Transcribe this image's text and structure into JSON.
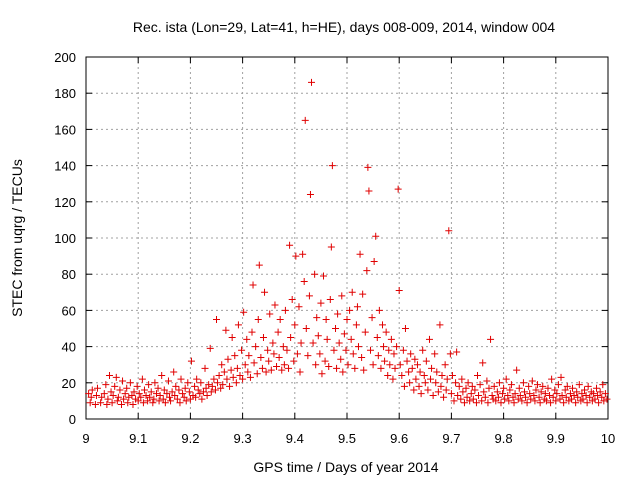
{
  "chart_data": {
    "type": "scatter",
    "title": "Rec. ista (Lon=29, Lat=41, h=HE), days 008-009, 2014, window 004",
    "xlabel": "GPS time / Days of year 2014",
    "ylabel": "STEC from uqrg / TECUs",
    "xlim": [
      9,
      10
    ],
    "ylim": [
      0,
      200
    ],
    "xticks": [
      "9",
      "9.1",
      "9.2",
      "9.3",
      "9.4",
      "9.5",
      "9.6",
      "9.7",
      "9.8",
      "9.9",
      "10"
    ],
    "yticks": [
      "0",
      "20",
      "40",
      "60",
      "80",
      "100",
      "120",
      "140",
      "160",
      "180",
      "200"
    ],
    "grid": true,
    "marker": "plus",
    "color": "#e00000",
    "points": [
      [
        9.005,
        14
      ],
      [
        9.008,
        9
      ],
      [
        9.01,
        12
      ],
      [
        9.012,
        16
      ],
      [
        9.018,
        8
      ],
      [
        9.02,
        13
      ],
      [
        9.022,
        17
      ],
      [
        9.028,
        9
      ],
      [
        9.03,
        12
      ],
      [
        9.035,
        14
      ],
      [
        9.038,
        19
      ],
      [
        9.04,
        8
      ],
      [
        9.042,
        11
      ],
      [
        9.045,
        24
      ],
      [
        9.048,
        15
      ],
      [
        9.05,
        9
      ],
      [
        9.052,
        13
      ],
      [
        9.055,
        18
      ],
      [
        9.058,
        23
      ],
      [
        9.06,
        10
      ],
      [
        9.062,
        12
      ],
      [
        9.065,
        16
      ],
      [
        9.068,
        8
      ],
      [
        9.07,
        21
      ],
      [
        9.072,
        11
      ],
      [
        9.075,
        14
      ],
      [
        9.078,
        17
      ],
      [
        9.08,
        9
      ],
      [
        9.082,
        12
      ],
      [
        9.085,
        20
      ],
      [
        9.088,
        13
      ],
      [
        9.09,
        8
      ],
      [
        9.092,
        15
      ],
      [
        9.095,
        11
      ],
      [
        9.098,
        18
      ],
      [
        9.1,
        10
      ],
      [
        9.102,
        14
      ],
      [
        9.105,
        12
      ],
      [
        9.108,
        22
      ],
      [
        9.11,
        9
      ],
      [
        9.112,
        16
      ],
      [
        9.115,
        13
      ],
      [
        9.118,
        10
      ],
      [
        9.12,
        19
      ],
      [
        9.122,
        12
      ],
      [
        9.125,
        15
      ],
      [
        9.128,
        9
      ],
      [
        9.13,
        11
      ],
      [
        9.132,
        20
      ],
      [
        9.135,
        14
      ],
      [
        9.138,
        17
      ],
      [
        9.14,
        10
      ],
      [
        9.142,
        13
      ],
      [
        9.145,
        24
      ],
      [
        9.148,
        11
      ],
      [
        9.15,
        16
      ],
      [
        9.152,
        9
      ],
      [
        9.155,
        14
      ],
      [
        9.158,
        21
      ],
      [
        9.16,
        12
      ],
      [
        9.162,
        10
      ],
      [
        9.165,
        15
      ],
      [
        9.168,
        26
      ],
      [
        9.17,
        13
      ],
      [
        9.172,
        18
      ],
      [
        9.175,
        11
      ],
      [
        9.178,
        16
      ],
      [
        9.18,
        9
      ],
      [
        9.182,
        22
      ],
      [
        9.185,
        14
      ],
      [
        9.188,
        12
      ],
      [
        9.19,
        17
      ],
      [
        9.192,
        10
      ],
      [
        9.195,
        20
      ],
      [
        9.198,
        15
      ],
      [
        9.2,
        11
      ],
      [
        9.202,
        32
      ],
      [
        9.205,
        13
      ],
      [
        9.208,
        18
      ],
      [
        9.21,
        12
      ],
      [
        9.212,
        22
      ],
      [
        9.215,
        16
      ],
      [
        9.218,
        14
      ],
      [
        9.22,
        20
      ],
      [
        9.222,
        11
      ],
      [
        9.225,
        15
      ],
      [
        9.228,
        28
      ],
      [
        9.23,
        17
      ],
      [
        9.232,
        13
      ],
      [
        9.235,
        19
      ],
      [
        9.238,
        39
      ],
      [
        9.24,
        15
      ],
      [
        9.242,
        18
      ],
      [
        9.245,
        22
      ],
      [
        9.248,
        16
      ],
      [
        9.25,
        55
      ],
      [
        9.252,
        20
      ],
      [
        9.255,
        24
      ],
      [
        9.258,
        17
      ],
      [
        9.26,
        30
      ],
      [
        9.262,
        19
      ],
      [
        9.265,
        26
      ],
      [
        9.268,
        49
      ],
      [
        9.27,
        22
      ],
      [
        9.272,
        33
      ],
      [
        9.275,
        18
      ],
      [
        9.278,
        27
      ],
      [
        9.28,
        45
      ],
      [
        9.282,
        23
      ],
      [
        9.285,
        35
      ],
      [
        9.288,
        20
      ],
      [
        9.29,
        28
      ],
      [
        9.292,
        52
      ],
      [
        9.295,
        24
      ],
      [
        9.298,
        38
      ],
      [
        9.3,
        22
      ],
      [
        9.302,
        59
      ],
      [
        9.305,
        30
      ],
      [
        9.308,
        44
      ],
      [
        9.31,
        26
      ],
      [
        9.312,
        35
      ],
      [
        9.315,
        23
      ],
      [
        9.318,
        48
      ],
      [
        9.32,
        74
      ],
      [
        9.322,
        31
      ],
      [
        9.325,
        40
      ],
      [
        9.328,
        25
      ],
      [
        9.33,
        55
      ],
      [
        9.332,
        85
      ],
      [
        9.335,
        34
      ],
      [
        9.338,
        28
      ],
      [
        9.34,
        45
      ],
      [
        9.342,
        70
      ],
      [
        9.345,
        26
      ],
      [
        9.348,
        38
      ],
      [
        9.35,
        32
      ],
      [
        9.352,
        58
      ],
      [
        9.355,
        27
      ],
      [
        9.358,
        42
      ],
      [
        9.36,
        36
      ],
      [
        9.362,
        63
      ],
      [
        9.365,
        29
      ],
      [
        9.368,
        48
      ],
      [
        9.37,
        34
      ],
      [
        9.372,
        55
      ],
      [
        9.375,
        27
      ],
      [
        9.378,
        40
      ],
      [
        9.38,
        30
      ],
      [
        9.382,
        60
      ],
      [
        9.385,
        38
      ],
      [
        9.388,
        28
      ],
      [
        9.39,
        96
      ],
      [
        9.392,
        45
      ],
      [
        9.395,
        66
      ],
      [
        9.398,
        32
      ],
      [
        9.4,
        52
      ],
      [
        9.402,
        90
      ],
      [
        9.405,
        36
      ],
      [
        9.408,
        62
      ],
      [
        9.41,
        26
      ],
      [
        9.412,
        42
      ],
      [
        9.415,
        91
      ],
      [
        9.418,
        76
      ],
      [
        9.42,
        165
      ],
      [
        9.422,
        50
      ],
      [
        9.425,
        35
      ],
      [
        9.428,
        68
      ],
      [
        9.43,
        124
      ],
      [
        9.432,
        186
      ],
      [
        9.435,
        42
      ],
      [
        9.438,
        80
      ],
      [
        9.44,
        30
      ],
      [
        9.442,
        56
      ],
      [
        9.445,
        46
      ],
      [
        9.448,
        36
      ],
      [
        9.45,
        64
      ],
      [
        9.452,
        25
      ],
      [
        9.455,
        79
      ],
      [
        9.458,
        32
      ],
      [
        9.46,
        55
      ],
      [
        9.462,
        44
      ],
      [
        9.465,
        29
      ],
      [
        9.468,
        66
      ],
      [
        9.47,
        95
      ],
      [
        9.472,
        140
      ],
      [
        9.475,
        38
      ],
      [
        9.478,
        50
      ],
      [
        9.48,
        28
      ],
      [
        9.482,
        58
      ],
      [
        9.485,
        42
      ],
      [
        9.488,
        33
      ],
      [
        9.49,
        68
      ],
      [
        9.492,
        26
      ],
      [
        9.495,
        47
      ],
      [
        9.498,
        38
      ],
      [
        9.5,
        55
      ],
      [
        9.502,
        30
      ],
      [
        9.505,
        60
      ],
      [
        9.508,
        44
      ],
      [
        9.51,
        70
      ],
      [
        9.512,
        36
      ],
      [
        9.515,
        28
      ],
      [
        9.518,
        52
      ],
      [
        9.52,
        62
      ],
      [
        9.522,
        40
      ],
      [
        9.525,
        91
      ],
      [
        9.528,
        34
      ],
      [
        9.53,
        69
      ],
      [
        9.532,
        27
      ],
      [
        9.535,
        48
      ],
      [
        9.538,
        82
      ],
      [
        9.54,
        139
      ],
      [
        9.542,
        126
      ],
      [
        9.545,
        38
      ],
      [
        9.548,
        56
      ],
      [
        9.55,
        30
      ],
      [
        9.552,
        87
      ],
      [
        9.555,
        101
      ],
      [
        9.558,
        45
      ],
      [
        9.56,
        35
      ],
      [
        9.562,
        60
      ],
      [
        9.565,
        28
      ],
      [
        9.568,
        52
      ],
      [
        9.57,
        40
      ],
      [
        9.572,
        32
      ],
      [
        9.575,
        48
      ],
      [
        9.578,
        24
      ],
      [
        9.58,
        38
      ],
      [
        9.582,
        30
      ],
      [
        9.585,
        44
      ],
      [
        9.588,
        22
      ],
      [
        9.59,
        36
      ],
      [
        9.592,
        28
      ],
      [
        9.595,
        40
      ],
      [
        9.598,
        127
      ],
      [
        9.6,
        71
      ],
      [
        9.602,
        30
      ],
      [
        9.605,
        24
      ],
      [
        9.608,
        38
      ],
      [
        9.61,
        18
      ],
      [
        9.612,
        50
      ],
      [
        9.615,
        32
      ],
      [
        9.618,
        26
      ],
      [
        9.62,
        20
      ],
      [
        9.622,
        36
      ],
      [
        9.625,
        28
      ],
      [
        9.628,
        16
      ],
      [
        9.63,
        33
      ],
      [
        9.632,
        22
      ],
      [
        9.635,
        30
      ],
      [
        9.638,
        18
      ],
      [
        9.64,
        26
      ],
      [
        9.642,
        14
      ],
      [
        9.645,
        38
      ],
      [
        9.648,
        24
      ],
      [
        9.65,
        20
      ],
      [
        9.652,
        32
      ],
      [
        9.655,
        16
      ],
      [
        9.658,
        44
      ],
      [
        9.66,
        22
      ],
      [
        9.662,
        28
      ],
      [
        9.665,
        13
      ],
      [
        9.668,
        36
      ],
      [
        9.67,
        20
      ],
      [
        9.672,
        26
      ],
      [
        9.675,
        15
      ],
      [
        9.678,
        52
      ],
      [
        9.68,
        18
      ],
      [
        9.682,
        24
      ],
      [
        9.685,
        12
      ],
      [
        9.688,
        30
      ],
      [
        9.69,
        16
      ],
      [
        9.692,
        22
      ],
      [
        9.695,
        104
      ],
      [
        9.698,
        36
      ],
      [
        9.7,
        14
      ],
      [
        9.702,
        24
      ],
      [
        9.705,
        10
      ],
      [
        9.708,
        20
      ],
      [
        9.71,
        37
      ],
      [
        9.712,
        13
      ],
      [
        9.715,
        18
      ],
      [
        9.718,
        11
      ],
      [
        9.72,
        22
      ],
      [
        9.722,
        15
      ],
      [
        9.725,
        9
      ],
      [
        9.728,
        17
      ],
      [
        9.73,
        12
      ],
      [
        9.732,
        20
      ],
      [
        9.735,
        10
      ],
      [
        9.738,
        14
      ],
      [
        9.74,
        18
      ],
      [
        9.742,
        11
      ],
      [
        9.745,
        16
      ],
      [
        9.748,
        9
      ],
      [
        9.75,
        24
      ],
      [
        9.752,
        13
      ],
      [
        9.755,
        19
      ],
      [
        9.758,
        10
      ],
      [
        9.76,
        31
      ],
      [
        9.762,
        15
      ],
      [
        9.765,
        12
      ],
      [
        9.768,
        21
      ],
      [
        9.77,
        9
      ],
      [
        9.772,
        17
      ],
      [
        9.775,
        44
      ],
      [
        9.778,
        13
      ],
      [
        9.78,
        11
      ],
      [
        9.782,
        18
      ],
      [
        9.785,
        10
      ],
      [
        9.788,
        15
      ],
      [
        9.79,
        12
      ],
      [
        9.792,
        20
      ],
      [
        9.795,
        9
      ],
      [
        9.798,
        14
      ],
      [
        9.8,
        17
      ],
      [
        9.802,
        11
      ],
      [
        9.805,
        22
      ],
      [
        9.808,
        13
      ],
      [
        9.81,
        10
      ],
      [
        9.812,
        16
      ],
      [
        9.815,
        19
      ],
      [
        9.818,
        12
      ],
      [
        9.82,
        9
      ],
      [
        9.822,
        14
      ],
      [
        9.825,
        27
      ],
      [
        9.828,
        11
      ],
      [
        9.83,
        17
      ],
      [
        9.832,
        13
      ],
      [
        9.835,
        10
      ],
      [
        9.838,
        20
      ],
      [
        9.84,
        15
      ],
      [
        9.842,
        12
      ],
      [
        9.845,
        9
      ],
      [
        9.848,
        18
      ],
      [
        9.85,
        14
      ],
      [
        9.852,
        11
      ],
      [
        9.855,
        21
      ],
      [
        9.858,
        13
      ],
      [
        9.86,
        10
      ],
      [
        9.862,
        16
      ],
      [
        9.865,
        19
      ],
      [
        9.868,
        12
      ],
      [
        9.87,
        9
      ],
      [
        9.872,
        15
      ],
      [
        9.875,
        18
      ],
      [
        9.878,
        11
      ],
      [
        9.88,
        14
      ],
      [
        9.882,
        10
      ],
      [
        9.885,
        17
      ],
      [
        9.888,
        13
      ],
      [
        9.89,
        9
      ],
      [
        9.892,
        22
      ],
      [
        9.895,
        12
      ],
      [
        9.898,
        16
      ],
      [
        9.9,
        10
      ],
      [
        9.902,
        14
      ],
      [
        9.905,
        19
      ],
      [
        9.908,
        11
      ],
      [
        9.91,
        23
      ],
      [
        9.912,
        13
      ],
      [
        9.915,
        9
      ],
      [
        9.918,
        16
      ],
      [
        9.92,
        12
      ],
      [
        9.922,
        18
      ],
      [
        9.925,
        10
      ],
      [
        9.928,
        14
      ],
      [
        9.93,
        11
      ],
      [
        9.932,
        17
      ],
      [
        9.935,
        13
      ],
      [
        9.938,
        9
      ],
      [
        9.94,
        15
      ],
      [
        9.942,
        12
      ],
      [
        9.945,
        19
      ],
      [
        9.948,
        10
      ],
      [
        9.95,
        14
      ],
      [
        9.952,
        11
      ],
      [
        9.955,
        16
      ],
      [
        9.958,
        13
      ],
      [
        9.96,
        9
      ],
      [
        9.962,
        18
      ],
      [
        9.965,
        12
      ],
      [
        9.968,
        15
      ],
      [
        9.97,
        10
      ],
      [
        9.972,
        14
      ],
      [
        9.975,
        11
      ],
      [
        9.978,
        17
      ],
      [
        9.98,
        13
      ],
      [
        9.982,
        9
      ],
      [
        9.985,
        15
      ],
      [
        9.988,
        12
      ],
      [
        9.99,
        19
      ],
      [
        9.992,
        10
      ],
      [
        9.995,
        14
      ],
      [
        9.998,
        11
      ]
    ]
  }
}
